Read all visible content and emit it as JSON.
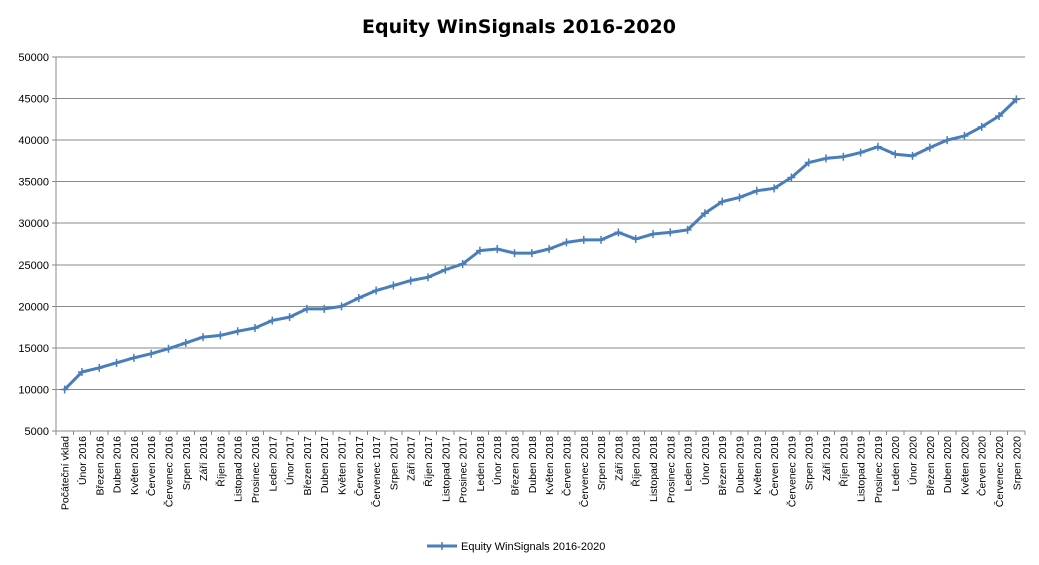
{
  "chart_data": {
    "type": "line",
    "title": "Equity WinSignals 2016-2020",
    "xlabel": "",
    "ylabel": "",
    "ylim": [
      5000,
      50000
    ],
    "yticks": [
      5000,
      10000,
      15000,
      20000,
      25000,
      30000,
      35000,
      40000,
      45000,
      50000
    ],
    "grid": true,
    "legend_position": "bottom",
    "categories": [
      "Počáteční vklad",
      "Únor 2016",
      "Březen 2016",
      "Duben 2016",
      "Květen 2016",
      "Červen 2016",
      "Červenec 2016",
      "Srpen 2016",
      "Září 2016",
      "Říjen 2016",
      "Listopad 2016",
      "Prosinec 2016",
      "Leden 2017",
      "Únor 2017",
      "Březen 2017",
      "Duben 2017",
      "Květen 2017",
      "Červen 2017",
      "Červenec 1017",
      "Srpen 2017",
      "Září 2017",
      "Říjen 2017",
      "Listopad 2017",
      "Prosinec 2017",
      "Leden 2018",
      "Únor 2018",
      "Březen 2018",
      "Duben 2018",
      "Květen 2018",
      "Červen 2018",
      "Červenec 2018",
      "Srpen 2018",
      "Září 2018",
      "Říjen 2018",
      "Listopad 2018",
      "Prosinec 2018",
      "Leden 2019",
      "Únor 2019",
      "Březen 2019",
      "Duben 2019",
      "Květen 2019",
      "Červen 2019",
      "Červenec 2019",
      "Srpen 2019",
      "Září 2019",
      "Říjen 2019",
      "Listopad 2019",
      "Prosinec 2019",
      "Leden 2020",
      "Únor 2020",
      "Březen 2020",
      "Duben 2020",
      "Květen 2020",
      "Červen 2020",
      "Červenec 2020",
      "Srpen 2020"
    ],
    "series": [
      {
        "name": "Equity WinSignals 2016-2020",
        "color": "#4a7ebb",
        "values": [
          10000,
          12100,
          12600,
          13200,
          13800,
          14300,
          14900,
          15600,
          16300,
          16500,
          17000,
          17400,
          18300,
          18700,
          19700,
          19700,
          20000,
          21000,
          21900,
          22500,
          23100,
          23500,
          24400,
          25100,
          26700,
          26900,
          26400,
          26400,
          26900,
          27700,
          28000,
          28000,
          28900,
          28100,
          28700,
          28900,
          29200,
          31200,
          32600,
          33100,
          33900,
          34200,
          35500,
          37300,
          37800,
          38000,
          38500,
          39200,
          38300,
          38100,
          39100,
          40000,
          40500,
          41600,
          42900,
          44900
        ]
      }
    ]
  }
}
